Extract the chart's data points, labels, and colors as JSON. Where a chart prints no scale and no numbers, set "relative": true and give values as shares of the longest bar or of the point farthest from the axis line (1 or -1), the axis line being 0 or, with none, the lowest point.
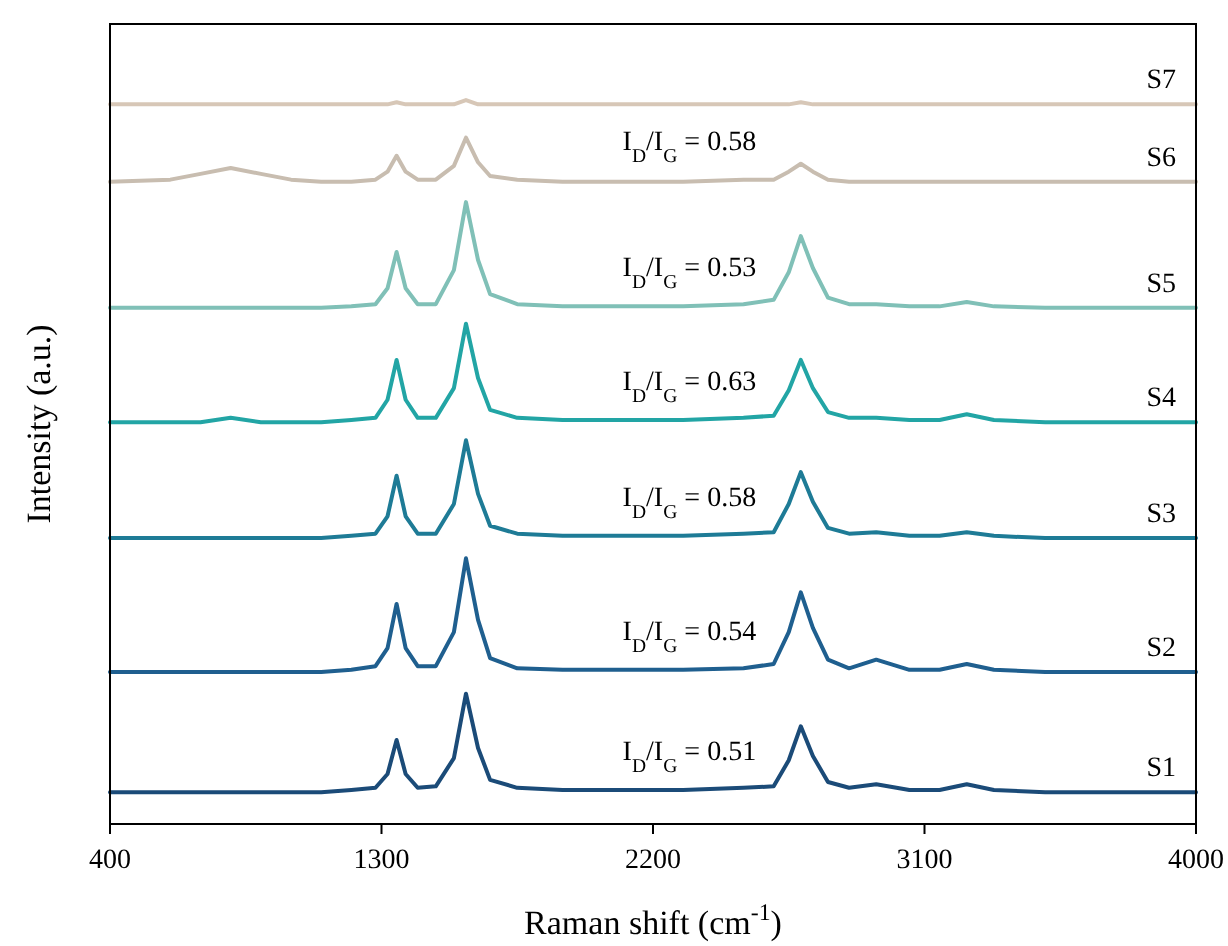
{
  "chart_data": {
    "type": "line",
    "relative": true,
    "xlabel": "Raman shift (cm$^{-1}$)",
    "ylabel": "Intensity (a.u.)",
    "xlim": [
      400,
      4000
    ],
    "xticks": [
      400,
      1300,
      2200,
      3100,
      4000
    ],
    "x": [
      400,
      600,
      700,
      800,
      900,
      1000,
      1100,
      1200,
      1280,
      1320,
      1350,
      1380,
      1420,
      1480,
      1540,
      1580,
      1620,
      1660,
      1750,
      1900,
      2100,
      2300,
      2500,
      2600,
      2650,
      2690,
      2730,
      2780,
      2850,
      2940,
      3050,
      3150,
      3240,
      3330,
      3500,
      3700,
      4000
    ],
    "series": [
      {
        "name": "S1",
        "color": "#1b4b78",
        "values": [
          0.044,
          0.044,
          0.044,
          0.044,
          0.044,
          0.044,
          0.044,
          0.047,
          0.05,
          0.069,
          0.116,
          0.069,
          0.05,
          0.052,
          0.091,
          0.18,
          0.105,
          0.061,
          0.05,
          0.047,
          0.047,
          0.047,
          0.05,
          0.052,
          0.088,
          0.135,
          0.094,
          0.058,
          0.05,
          0.055,
          0.047,
          0.047,
          0.055,
          0.047,
          0.044,
          0.044,
          0.044
        ]
      },
      {
        "name": "S2",
        "color": "#1f5f8f",
        "values": [
          0.21,
          0.21,
          0.21,
          0.21,
          0.21,
          0.21,
          0.21,
          0.213,
          0.218,
          0.243,
          0.304,
          0.243,
          0.218,
          0.218,
          0.265,
          0.367,
          0.282,
          0.229,
          0.215,
          0.213,
          0.213,
          0.213,
          0.215,
          0.221,
          0.265,
          0.32,
          0.271,
          0.227,
          0.215,
          0.227,
          0.213,
          0.213,
          0.221,
          0.213,
          0.21,
          0.21,
          0.21
        ]
      },
      {
        "name": "S3",
        "color": "#1e7b96",
        "values": [
          0.395,
          0.395,
          0.395,
          0.395,
          0.395,
          0.395,
          0.395,
          0.398,
          0.401,
          0.425,
          0.481,
          0.425,
          0.401,
          0.401,
          0.442,
          0.53,
          0.456,
          0.412,
          0.401,
          0.398,
          0.398,
          0.398,
          0.401,
          0.403,
          0.442,
          0.486,
          0.445,
          0.409,
          0.401,
          0.403,
          0.398,
          0.398,
          0.403,
          0.398,
          0.395,
          0.395,
          0.395
        ]
      },
      {
        "name": "S4",
        "color": "#22a5a5",
        "values": [
          0.555,
          0.555,
          0.555,
          0.561,
          0.555,
          0.555,
          0.555,
          0.558,
          0.561,
          0.586,
          0.641,
          0.586,
          0.561,
          0.561,
          0.602,
          0.691,
          0.616,
          0.572,
          0.561,
          0.558,
          0.558,
          0.558,
          0.561,
          0.564,
          0.599,
          0.641,
          0.602,
          0.569,
          0.561,
          0.561,
          0.558,
          0.558,
          0.566,
          0.558,
          0.555,
          0.555,
          0.555
        ]
      },
      {
        "name": "S5",
        "color": "#80c0b7",
        "values": [
          0.713,
          0.713,
          0.713,
          0.713,
          0.713,
          0.713,
          0.713,
          0.715,
          0.718,
          0.74,
          0.79,
          0.74,
          0.718,
          0.718,
          0.765,
          0.859,
          0.779,
          0.732,
          0.718,
          0.715,
          0.715,
          0.715,
          0.718,
          0.724,
          0.762,
          0.812,
          0.768,
          0.727,
          0.718,
          0.718,
          0.715,
          0.715,
          0.721,
          0.715,
          0.713,
          0.713,
          0.713
        ]
      },
      {
        "name": "S6",
        "color": "#c8bdb0",
        "values": [
          0.887,
          0.89,
          0.898,
          0.906,
          0.898,
          0.89,
          0.887,
          0.887,
          0.89,
          0.901,
          0.923,
          0.901,
          0.89,
          0.89,
          0.909,
          0.948,
          0.914,
          0.895,
          0.89,
          0.887,
          0.887,
          0.887,
          0.89,
          0.89,
          0.901,
          0.912,
          0.901,
          0.89,
          0.887,
          0.887,
          0.887,
          0.887,
          0.887,
          0.887,
          0.887,
          0.887,
          0.887
        ]
      },
      {
        "name": "S7",
        "color": "#d7c7b7",
        "values": [
          0.994,
          0.994,
          0.994,
          0.994,
          0.994,
          0.994,
          0.994,
          0.994,
          0.994,
          0.994,
          0.997,
          0.994,
          0.994,
          0.994,
          0.994,
          1,
          0.994,
          0.994,
          0.994,
          0.994,
          0.994,
          0.994,
          0.994,
          0.994,
          0.994,
          0.997,
          0.994,
          0.994,
          0.994,
          0.994,
          0.994,
          0.994,
          0.994,
          0.994,
          0.994,
          0.994,
          0.994
        ]
      }
    ],
    "annotations": [
      "I$_{D}$/I$_{G}$ = 0.51",
      "I$_{D}$/I$_{G}$ = 0.54",
      "I$_{D}$/I$_{G}$ = 0.58",
      "I$_{D}$/I$_{G}$ = 0.63",
      "I$_{D}$/I$_{G}$ = 0.53",
      "I$_{D}$/I$_{G}$ = 0.58"
    ]
  }
}
